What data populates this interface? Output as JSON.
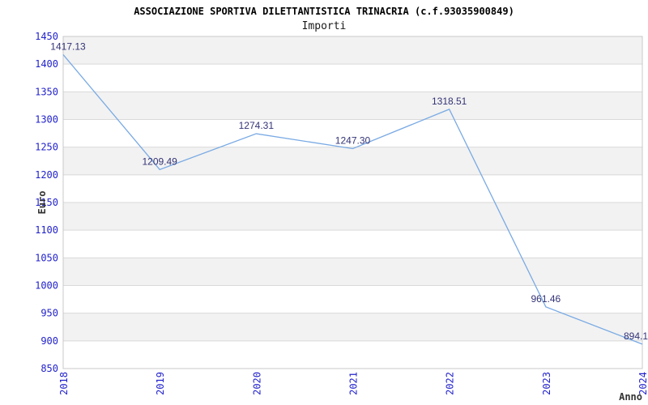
{
  "chart_data": {
    "type": "line",
    "title": "ASSOCIAZIONE SPORTIVA DILETTANTISTICA TRINACRIA (c.f.93035900849)",
    "subtitle": "Importi",
    "xlabel": "Anno",
    "ylabel": "Euro",
    "x": [
      "2018",
      "2019",
      "2020",
      "2021",
      "2022",
      "2023",
      "2024"
    ],
    "series": [
      {
        "name": "Importi",
        "values": [
          1417.13,
          1209.49,
          1274.31,
          1247.3,
          1318.51,
          961.46,
          894.1
        ],
        "point_labels": [
          "1417.13",
          "1209.49",
          "1274.31",
          "1247.30",
          "1318.51",
          "961.46",
          "894.1"
        ]
      }
    ],
    "ylim": [
      850,
      1450
    ],
    "ytick_step": 50,
    "ytick_labels": [
      "850",
      "900",
      "950",
      "1000",
      "1050",
      "1100",
      "1150",
      "1200",
      "1250",
      "1300",
      "1350",
      "1400",
      "1450"
    ],
    "grid": "horizontal-only",
    "bands": "alternating horizontal stripes starting gray at top",
    "legend": "none",
    "markers": "none",
    "colors": {
      "line": "#79aae4",
      "tick_label": "#2222cc",
      "point_label": "#333377",
      "band": "#f2f2f2",
      "gridline": "#d9d9d9",
      "plot_border": "#c9c9c9",
      "title": "#000000",
      "axis_label": "#333333",
      "background": "#ffffff"
    }
  }
}
